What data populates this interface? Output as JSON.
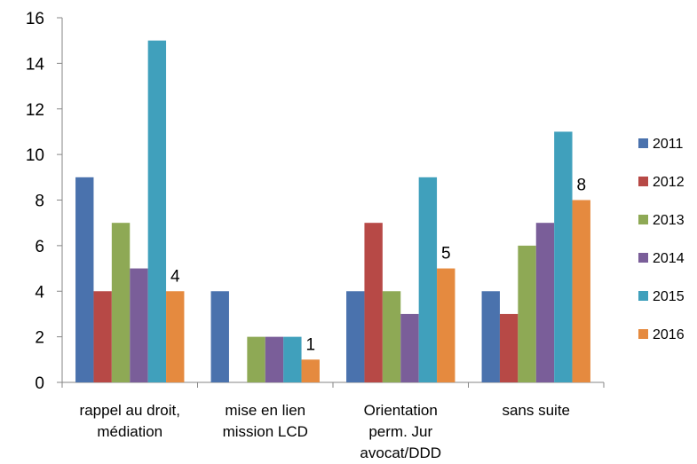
{
  "chart_data": {
    "type": "bar",
    "categories": [
      [
        "rappel au droit,",
        "médiation"
      ],
      [
        "mise en lien",
        "mission LCD"
      ],
      [
        "Orientation",
        "perm. Jur",
        "avocat/DDD"
      ],
      [
        "sans suite"
      ]
    ],
    "series": [
      {
        "name": "2011",
        "color": "#4a72ad",
        "values": [
          9,
          4,
          4,
          4
        ]
      },
      {
        "name": "2012",
        "color": "#b74946",
        "values": [
          4,
          0,
          7,
          3
        ]
      },
      {
        "name": "2013",
        "color": "#8ea955",
        "values": [
          7,
          2,
          4,
          6
        ]
      },
      {
        "name": "2014",
        "color": "#7a5e99",
        "values": [
          5,
          2,
          3,
          7
        ]
      },
      {
        "name": "2015",
        "color": "#40a0bc",
        "values": [
          15,
          2,
          9,
          11
        ]
      },
      {
        "name": "2016",
        "color": "#e58a3f",
        "values": [
          4,
          1,
          5,
          8
        ]
      }
    ],
    "data_labels": [
      {
        "category_index": 0,
        "series_index": 5,
        "text": "4"
      },
      {
        "category_index": 1,
        "series_index": 5,
        "text": "1"
      },
      {
        "category_index": 2,
        "series_index": 5,
        "text": "5"
      },
      {
        "category_index": 3,
        "series_index": 5,
        "text": "8"
      }
    ],
    "y_ticks": [
      0,
      2,
      4,
      6,
      8,
      10,
      12,
      14,
      16
    ],
    "ylim": [
      0,
      16
    ],
    "legend_position": "right",
    "grid": false,
    "title": "",
    "xlabel": "",
    "ylabel": ""
  }
}
